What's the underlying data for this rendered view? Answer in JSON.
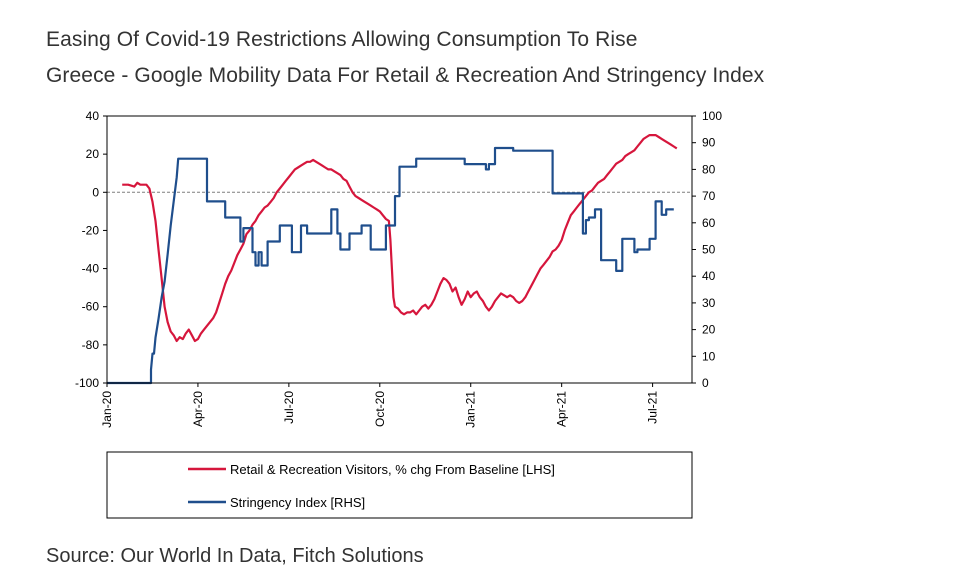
{
  "header": {
    "title": "Easing Of Covid-19 Restrictions Allowing Consumption To Rise",
    "subtitle": "Greece - Google Mobility Data For Retail & Recreation And Stringency Index"
  },
  "footer": {
    "source": "Source: Our World In Data, Fitch Solutions"
  },
  "colors": {
    "retail": "#d6163c",
    "stringency": "#1f4e8c",
    "zero_line": "#7f7f7f"
  },
  "chart_data": {
    "type": "line",
    "title": "Greece - Google Mobility Data For Retail & Recreation And Stringency Index",
    "x_tick_labels": [
      "Jan-20",
      "Apr-20",
      "Jul-20",
      "Oct-20",
      "Jan-21",
      "Apr-21",
      "Jul-21"
    ],
    "x_range_months": [
      0,
      19.3
    ],
    "y_left": {
      "ticks": [
        40,
        20,
        0,
        -20,
        -40,
        -60,
        -80,
        -100
      ],
      "range": [
        -100,
        40
      ],
      "label": "% chg From Baseline"
    },
    "y_right": {
      "ticks": [
        100,
        90,
        80,
        70,
        60,
        50,
        40,
        30,
        20,
        10,
        0
      ],
      "range": [
        0,
        100
      ],
      "label": "Stringency Index"
    },
    "legend": {
      "placement": "bottom",
      "entries": [
        "Retail & Recreation Visitors, % chg From Baseline [LHS]",
        "Stringency Index [RHS]"
      ]
    },
    "series": [
      {
        "name": "Retail & Recreation Visitors, % chg From Baseline [LHS]",
        "axis": "left",
        "color": "#d6163c",
        "points": [
          [
            0.5,
            4
          ],
          [
            0.7,
            4
          ],
          [
            0.9,
            3
          ],
          [
            1.0,
            5
          ],
          [
            1.1,
            4
          ],
          [
            1.3,
            4
          ],
          [
            1.4,
            2
          ],
          [
            1.5,
            -5
          ],
          [
            1.6,
            -15
          ],
          [
            1.7,
            -30
          ],
          [
            1.8,
            -45
          ],
          [
            1.9,
            -60
          ],
          [
            2.0,
            -68
          ],
          [
            2.1,
            -73
          ],
          [
            2.2,
            -75
          ],
          [
            2.3,
            -78
          ],
          [
            2.4,
            -76
          ],
          [
            2.5,
            -77
          ],
          [
            2.6,
            -74
          ],
          [
            2.7,
            -72
          ],
          [
            2.8,
            -75
          ],
          [
            2.9,
            -78
          ],
          [
            3.0,
            -77
          ],
          [
            3.1,
            -74
          ],
          [
            3.2,
            -72
          ],
          [
            3.3,
            -70
          ],
          [
            3.5,
            -66
          ],
          [
            3.6,
            -63
          ],
          [
            3.7,
            -58
          ],
          [
            3.8,
            -53
          ],
          [
            3.9,
            -48
          ],
          [
            4.0,
            -44
          ],
          [
            4.1,
            -41
          ],
          [
            4.2,
            -37
          ],
          [
            4.3,
            -33
          ],
          [
            4.4,
            -30
          ],
          [
            4.5,
            -27
          ],
          [
            4.6,
            -22
          ],
          [
            4.7,
            -20
          ],
          [
            4.8,
            -17
          ],
          [
            4.9,
            -15
          ],
          [
            5.0,
            -12
          ],
          [
            5.1,
            -10
          ],
          [
            5.2,
            -8
          ],
          [
            5.3,
            -7
          ],
          [
            5.4,
            -5
          ],
          [
            5.5,
            -3
          ],
          [
            5.6,
            0
          ],
          [
            5.7,
            2
          ],
          [
            5.8,
            4
          ],
          [
            5.9,
            6
          ],
          [
            6.0,
            8
          ],
          [
            6.1,
            10
          ],
          [
            6.2,
            12
          ],
          [
            6.3,
            13
          ],
          [
            6.4,
            14
          ],
          [
            6.5,
            15
          ],
          [
            6.6,
            16
          ],
          [
            6.7,
            16
          ],
          [
            6.8,
            17
          ],
          [
            6.9,
            16
          ],
          [
            7.0,
            15
          ],
          [
            7.1,
            14
          ],
          [
            7.2,
            13
          ],
          [
            7.3,
            12
          ],
          [
            7.4,
            12
          ],
          [
            7.5,
            11
          ],
          [
            7.6,
            10
          ],
          [
            7.7,
            9
          ],
          [
            7.8,
            7
          ],
          [
            7.9,
            6
          ],
          [
            8.0,
            3
          ],
          [
            8.1,
            0
          ],
          [
            8.2,
            -2
          ],
          [
            8.3,
            -3
          ],
          [
            8.4,
            -4
          ],
          [
            8.5,
            -5
          ],
          [
            8.6,
            -6
          ],
          [
            8.7,
            -7
          ],
          [
            8.8,
            -8
          ],
          [
            8.9,
            -9
          ],
          [
            9.0,
            -10
          ],
          [
            9.1,
            -12
          ],
          [
            9.2,
            -14
          ],
          [
            9.3,
            -15
          ],
          [
            9.35,
            -25
          ],
          [
            9.4,
            -40
          ],
          [
            9.45,
            -55
          ],
          [
            9.5,
            -60
          ],
          [
            9.6,
            -61
          ],
          [
            9.7,
            -63
          ],
          [
            9.8,
            -64
          ],
          [
            9.9,
            -63
          ],
          [
            10.0,
            -63
          ],
          [
            10.1,
            -62
          ],
          [
            10.2,
            -64
          ],
          [
            10.3,
            -62
          ],
          [
            10.4,
            -60
          ],
          [
            10.5,
            -59
          ],
          [
            10.6,
            -61
          ],
          [
            10.7,
            -59
          ],
          [
            10.8,
            -56
          ],
          [
            10.9,
            -52
          ],
          [
            11.0,
            -48
          ],
          [
            11.1,
            -45
          ],
          [
            11.2,
            -46
          ],
          [
            11.3,
            -48
          ],
          [
            11.4,
            -52
          ],
          [
            11.5,
            -50
          ],
          [
            11.6,
            -55
          ],
          [
            11.7,
            -59
          ],
          [
            11.8,
            -56
          ],
          [
            11.9,
            -52
          ],
          [
            12.0,
            -55
          ],
          [
            12.1,
            -53
          ],
          [
            12.2,
            -52
          ],
          [
            12.3,
            -55
          ],
          [
            12.4,
            -57
          ],
          [
            12.5,
            -60
          ],
          [
            12.6,
            -62
          ],
          [
            12.7,
            -60
          ],
          [
            12.8,
            -57
          ],
          [
            12.9,
            -55
          ],
          [
            13.0,
            -53
          ],
          [
            13.1,
            -54
          ],
          [
            13.2,
            -55
          ],
          [
            13.3,
            -54
          ],
          [
            13.4,
            -55
          ],
          [
            13.5,
            -57
          ],
          [
            13.6,
            -58
          ],
          [
            13.7,
            -57
          ],
          [
            13.8,
            -55
          ],
          [
            13.9,
            -52
          ],
          [
            14.0,
            -49
          ],
          [
            14.1,
            -46
          ],
          [
            14.2,
            -43
          ],
          [
            14.3,
            -40
          ],
          [
            14.4,
            -38
          ],
          [
            14.5,
            -36
          ],
          [
            14.6,
            -34
          ],
          [
            14.7,
            -31
          ],
          [
            14.8,
            -30
          ],
          [
            14.9,
            -28
          ],
          [
            15.0,
            -25
          ],
          [
            15.1,
            -20
          ],
          [
            15.2,
            -16
          ],
          [
            15.3,
            -12
          ],
          [
            15.4,
            -10
          ],
          [
            15.5,
            -8
          ],
          [
            15.6,
            -6
          ],
          [
            15.7,
            -4
          ],
          [
            15.8,
            -2
          ],
          [
            15.9,
            0
          ],
          [
            16.0,
            1
          ],
          [
            16.1,
            3
          ],
          [
            16.2,
            5
          ],
          [
            16.3,
            6
          ],
          [
            16.4,
            7
          ],
          [
            16.5,
            9
          ],
          [
            16.6,
            11
          ],
          [
            16.7,
            13
          ],
          [
            16.8,
            15
          ],
          [
            16.9,
            16
          ],
          [
            17.0,
            17
          ],
          [
            17.1,
            19
          ],
          [
            17.2,
            20
          ],
          [
            17.3,
            21
          ],
          [
            17.4,
            22
          ],
          [
            17.5,
            24
          ],
          [
            17.6,
            26
          ],
          [
            17.7,
            28
          ],
          [
            17.8,
            29
          ],
          [
            17.9,
            30
          ],
          [
            18.0,
            30
          ],
          [
            18.1,
            30
          ],
          [
            18.2,
            29
          ],
          [
            18.3,
            28
          ],
          [
            18.4,
            27
          ],
          [
            18.5,
            26
          ],
          [
            18.6,
            25
          ],
          [
            18.7,
            24
          ],
          [
            18.8,
            23
          ]
        ]
      },
      {
        "name": "Stringency Index [RHS]",
        "axis": "right",
        "color": "#1f4e8c",
        "points": [
          [
            0,
            0
          ],
          [
            1.45,
            0
          ],
          [
            1.45,
            5
          ],
          [
            1.5,
            11
          ],
          [
            1.55,
            11
          ],
          [
            1.6,
            17
          ],
          [
            1.7,
            24
          ],
          [
            1.8,
            32
          ],
          [
            1.9,
            38
          ],
          [
            2.0,
            48
          ],
          [
            2.1,
            59
          ],
          [
            2.2,
            68
          ],
          [
            2.3,
            77
          ],
          [
            2.35,
            84
          ],
          [
            3.3,
            84
          ],
          [
            3.3,
            68
          ],
          [
            3.9,
            68
          ],
          [
            3.9,
            62
          ],
          [
            4.4,
            62
          ],
          [
            4.4,
            53
          ],
          [
            4.5,
            53
          ],
          [
            4.5,
            58
          ],
          [
            4.8,
            58
          ],
          [
            4.8,
            49
          ],
          [
            4.9,
            49
          ],
          [
            4.9,
            44
          ],
          [
            5.0,
            44
          ],
          [
            5.0,
            49
          ],
          [
            5.1,
            49
          ],
          [
            5.1,
            44
          ],
          [
            5.3,
            44
          ],
          [
            5.3,
            53
          ],
          [
            5.7,
            53
          ],
          [
            5.7,
            59
          ],
          [
            6.1,
            59
          ],
          [
            6.1,
            49
          ],
          [
            6.4,
            49
          ],
          [
            6.4,
            59
          ],
          [
            6.6,
            59
          ],
          [
            6.6,
            56
          ],
          [
            7.4,
            56
          ],
          [
            7.4,
            65
          ],
          [
            7.6,
            65
          ],
          [
            7.6,
            56
          ],
          [
            7.7,
            56
          ],
          [
            7.7,
            50
          ],
          [
            8.0,
            50
          ],
          [
            8.0,
            56
          ],
          [
            8.4,
            56
          ],
          [
            8.4,
            59
          ],
          [
            8.7,
            59
          ],
          [
            8.7,
            50
          ],
          [
            9.2,
            50
          ],
          [
            9.2,
            59
          ],
          [
            9.5,
            59
          ],
          [
            9.5,
            70
          ],
          [
            9.65,
            70
          ],
          [
            9.65,
            81
          ],
          [
            10.2,
            81
          ],
          [
            10.2,
            84
          ],
          [
            11.8,
            84
          ],
          [
            11.8,
            82
          ],
          [
            12.5,
            82
          ],
          [
            12.5,
            80
          ],
          [
            12.6,
            80
          ],
          [
            12.6,
            82
          ],
          [
            12.8,
            82
          ],
          [
            12.8,
            88
          ],
          [
            13.4,
            88
          ],
          [
            13.4,
            87
          ],
          [
            14.7,
            87
          ],
          [
            14.7,
            71
          ],
          [
            15.7,
            71
          ],
          [
            15.7,
            56
          ],
          [
            15.8,
            56
          ],
          [
            15.8,
            61
          ],
          [
            15.9,
            61
          ],
          [
            15.9,
            62
          ],
          [
            16.1,
            62
          ],
          [
            16.1,
            65
          ],
          [
            16.3,
            65
          ],
          [
            16.3,
            46
          ],
          [
            16.8,
            46
          ],
          [
            16.8,
            42
          ],
          [
            17.0,
            42
          ],
          [
            17.0,
            54
          ],
          [
            17.4,
            54
          ],
          [
            17.4,
            49
          ],
          [
            17.5,
            49
          ],
          [
            17.5,
            50
          ],
          [
            17.9,
            50
          ],
          [
            17.9,
            54
          ],
          [
            18.1,
            54
          ],
          [
            18.1,
            68
          ],
          [
            18.3,
            68
          ],
          [
            18.3,
            63
          ],
          [
            18.45,
            63
          ],
          [
            18.45,
            65
          ],
          [
            18.7,
            65
          ]
        ]
      }
    ]
  }
}
